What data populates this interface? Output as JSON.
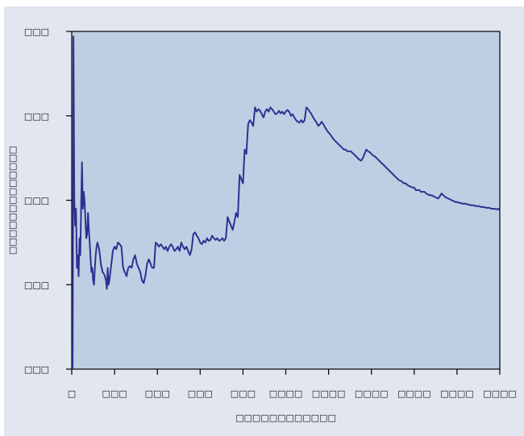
{
  "chart_data": {
    "type": "line",
    "title": "",
    "xlabel": "□□□□□□□□□□□□",
    "ylabel": "□□□□□□□□□□□□□",
    "x_ticks": [
      {
        "value": 0,
        "label": "□"
      },
      {
        "value": 50,
        "label": "□□□"
      },
      {
        "value": 100,
        "label": "□□□"
      },
      {
        "value": 150,
        "label": "□□□"
      },
      {
        "value": 200,
        "label": "□□□"
      },
      {
        "value": 250,
        "label": "□□□□"
      },
      {
        "value": 300,
        "label": "□□□□"
      },
      {
        "value": 350,
        "label": "□□□□"
      },
      {
        "value": 400,
        "label": "□□□□"
      },
      {
        "value": 450,
        "label": "□□□□"
      },
      {
        "value": 500,
        "label": "□□□□"
      }
    ],
    "y_ticks": [
      {
        "value": 0,
        "label": "□□□"
      },
      {
        "value": 1,
        "label": "□□□"
      },
      {
        "value": 2,
        "label": "□□□"
      },
      {
        "value": 3,
        "label": "□□□"
      },
      {
        "value": 4,
        "label": "□□□"
      }
    ],
    "xlim": [
      0,
      500
    ],
    "ylim": [
      0,
      4
    ],
    "grid": false,
    "colors": {
      "line": "#2e3192",
      "plot_bg": "#bfcfe3",
      "figure_bg": "#e1e6f0",
      "axis": "#000000"
    },
    "series": [
      {
        "values": [
          [
            1,
            0.0
          ],
          [
            2,
            3.94
          ],
          [
            3,
            2.0
          ],
          [
            4,
            1.7
          ],
          [
            5,
            1.9
          ],
          [
            6,
            1.2
          ],
          [
            7,
            1.35
          ],
          [
            8,
            1.1
          ],
          [
            9,
            1.55
          ],
          [
            10,
            1.35
          ],
          [
            11,
            1.95
          ],
          [
            12,
            2.45
          ],
          [
            13,
            1.9
          ],
          [
            14,
            2.1
          ],
          [
            15,
            2.0
          ],
          [
            16,
            1.75
          ],
          [
            17,
            1.55
          ],
          [
            18,
            1.6
          ],
          [
            19,
            1.85
          ],
          [
            20,
            1.65
          ],
          [
            21,
            1.5
          ],
          [
            22,
            1.3
          ],
          [
            23,
            1.15
          ],
          [
            24,
            1.2
          ],
          [
            25,
            1.05
          ],
          [
            26,
            1.0
          ],
          [
            27,
            1.2
          ],
          [
            28,
            1.35
          ],
          [
            29,
            1.45
          ],
          [
            30,
            1.5
          ],
          [
            32,
            1.42
          ],
          [
            34,
            1.25
          ],
          [
            36,
            1.15
          ],
          [
            38,
            1.12
          ],
          [
            40,
            1.05
          ],
          [
            41,
            0.95
          ],
          [
            42,
            1.2
          ],
          [
            43,
            1.0
          ],
          [
            44,
            1.05
          ],
          [
            48,
            1.4
          ],
          [
            50,
            1.45
          ],
          [
            52,
            1.42
          ],
          [
            54,
            1.5
          ],
          [
            56,
            1.48
          ],
          [
            58,
            1.45
          ],
          [
            60,
            1.2
          ],
          [
            62,
            1.15
          ],
          [
            64,
            1.1
          ],
          [
            66,
            1.2
          ],
          [
            68,
            1.22
          ],
          [
            70,
            1.2
          ],
          [
            72,
            1.3
          ],
          [
            74,
            1.35
          ],
          [
            76,
            1.25
          ],
          [
            78,
            1.2
          ],
          [
            80,
            1.15
          ],
          [
            82,
            1.05
          ],
          [
            84,
            1.02
          ],
          [
            86,
            1.1
          ],
          [
            88,
            1.25
          ],
          [
            90,
            1.3
          ],
          [
            92,
            1.25
          ],
          [
            94,
            1.2
          ],
          [
            96,
            1.2
          ],
          [
            98,
            1.5
          ],
          [
            100,
            1.48
          ],
          [
            102,
            1.45
          ],
          [
            104,
            1.48
          ],
          [
            106,
            1.45
          ],
          [
            108,
            1.42
          ],
          [
            110,
            1.45
          ],
          [
            112,
            1.4
          ],
          [
            114,
            1.45
          ],
          [
            116,
            1.48
          ],
          [
            118,
            1.45
          ],
          [
            120,
            1.4
          ],
          [
            122,
            1.42
          ],
          [
            124,
            1.45
          ],
          [
            126,
            1.4
          ],
          [
            128,
            1.5
          ],
          [
            130,
            1.45
          ],
          [
            132,
            1.42
          ],
          [
            134,
            1.45
          ],
          [
            136,
            1.4
          ],
          [
            138,
            1.35
          ],
          [
            140,
            1.42
          ],
          [
            142,
            1.6
          ],
          [
            144,
            1.62
          ],
          [
            146,
            1.58
          ],
          [
            148,
            1.55
          ],
          [
            150,
            1.5
          ],
          [
            152,
            1.48
          ],
          [
            154,
            1.52
          ],
          [
            156,
            1.5
          ],
          [
            158,
            1.55
          ],
          [
            160,
            1.52
          ],
          [
            162,
            1.53
          ],
          [
            164,
            1.58
          ],
          [
            166,
            1.55
          ],
          [
            168,
            1.53
          ],
          [
            170,
            1.55
          ],
          [
            172,
            1.52
          ],
          [
            174,
            1.53
          ],
          [
            176,
            1.55
          ],
          [
            178,
            1.52
          ],
          [
            180,
            1.55
          ],
          [
            182,
            1.8
          ],
          [
            184,
            1.75
          ],
          [
            186,
            1.7
          ],
          [
            188,
            1.65
          ],
          [
            190,
            1.75
          ],
          [
            192,
            1.85
          ],
          [
            194,
            1.8
          ],
          [
            196,
            2.3
          ],
          [
            198,
            2.25
          ],
          [
            200,
            2.2
          ],
          [
            202,
            2.6
          ],
          [
            204,
            2.55
          ],
          [
            206,
            2.9
          ],
          [
            208,
            2.95
          ],
          [
            210,
            2.92
          ],
          [
            212,
            2.88
          ],
          [
            214,
            3.1
          ],
          [
            216,
            3.05
          ],
          [
            218,
            3.08
          ],
          [
            220,
            3.06
          ],
          [
            222,
            3.02
          ],
          [
            224,
            2.98
          ],
          [
            226,
            3.05
          ],
          [
            228,
            3.08
          ],
          [
            230,
            3.05
          ],
          [
            232,
            3.1
          ],
          [
            234,
            3.08
          ],
          [
            236,
            3.05
          ],
          [
            238,
            3.02
          ],
          [
            240,
            3.03
          ],
          [
            242,
            3.06
          ],
          [
            244,
            3.03
          ],
          [
            246,
            3.05
          ],
          [
            248,
            3.02
          ],
          [
            250,
            3.05
          ],
          [
            252,
            3.07
          ],
          [
            254,
            3.05
          ],
          [
            256,
            3.0
          ],
          [
            258,
            3.02
          ],
          [
            260,
            2.98
          ],
          [
            262,
            2.95
          ],
          [
            264,
            2.93
          ],
          [
            266,
            2.92
          ],
          [
            268,
            2.95
          ],
          [
            270,
            2.92
          ],
          [
            272,
            2.95
          ],
          [
            274,
            3.1
          ],
          [
            276,
            3.08
          ],
          [
            278,
            3.05
          ],
          [
            280,
            3.02
          ],
          [
            282,
            2.98
          ],
          [
            284,
            2.95
          ],
          [
            286,
            2.92
          ],
          [
            288,
            2.88
          ],
          [
            290,
            2.9
          ],
          [
            292,
            2.93
          ],
          [
            294,
            2.9
          ],
          [
            296,
            2.86
          ],
          [
            298,
            2.83
          ],
          [
            300,
            2.8
          ],
          [
            302,
            2.78
          ],
          [
            304,
            2.75
          ],
          [
            306,
            2.72
          ],
          [
            308,
            2.7
          ],
          [
            310,
            2.68
          ],
          [
            312,
            2.66
          ],
          [
            314,
            2.64
          ],
          [
            316,
            2.62
          ],
          [
            318,
            2.6
          ],
          [
            320,
            2.6
          ],
          [
            322,
            2.58
          ],
          [
            324,
            2.58
          ],
          [
            326,
            2.58
          ],
          [
            328,
            2.56
          ],
          [
            330,
            2.54
          ],
          [
            332,
            2.52
          ],
          [
            334,
            2.5
          ],
          [
            336,
            2.48
          ],
          [
            338,
            2.47
          ],
          [
            340,
            2.5
          ],
          [
            342,
            2.55
          ],
          [
            344,
            2.6
          ],
          [
            346,
            2.58
          ],
          [
            348,
            2.57
          ],
          [
            350,
            2.55
          ],
          [
            352,
            2.53
          ],
          [
            354,
            2.52
          ],
          [
            356,
            2.5
          ],
          [
            358,
            2.48
          ],
          [
            360,
            2.46
          ],
          [
            362,
            2.44
          ],
          [
            364,
            2.42
          ],
          [
            366,
            2.4
          ],
          [
            368,
            2.38
          ],
          [
            370,
            2.36
          ],
          [
            372,
            2.34
          ],
          [
            374,
            2.32
          ],
          [
            376,
            2.3
          ],
          [
            378,
            2.28
          ],
          [
            380,
            2.26
          ],
          [
            382,
            2.24
          ],
          [
            384,
            2.23
          ],
          [
            386,
            2.22
          ],
          [
            388,
            2.2
          ],
          [
            390,
            2.2
          ],
          [
            392,
            2.18
          ],
          [
            394,
            2.17
          ],
          [
            396,
            2.16
          ],
          [
            398,
            2.15
          ],
          [
            400,
            2.15
          ],
          [
            402,
            2.12
          ],
          [
            404,
            2.12
          ],
          [
            406,
            2.12
          ],
          [
            408,
            2.1
          ],
          [
            410,
            2.1
          ],
          [
            412,
            2.1
          ],
          [
            414,
            2.08
          ],
          [
            416,
            2.07
          ],
          [
            418,
            2.06
          ],
          [
            420,
            2.06
          ],
          [
            422,
            2.05
          ],
          [
            424,
            2.04
          ],
          [
            426,
            2.03
          ],
          [
            428,
            2.02
          ],
          [
            430,
            2.05
          ],
          [
            432,
            2.08
          ],
          [
            434,
            2.06
          ],
          [
            436,
            2.04
          ],
          [
            438,
            2.03
          ],
          [
            440,
            2.02
          ],
          [
            442,
            2.01
          ],
          [
            444,
            2.0
          ],
          [
            446,
            1.99
          ],
          [
            448,
            1.98
          ],
          [
            450,
            1.98
          ],
          [
            452,
            1.97
          ],
          [
            454,
            1.97
          ],
          [
            456,
            1.96
          ],
          [
            458,
            1.96
          ],
          [
            460,
            1.96
          ],
          [
            462,
            1.95
          ],
          [
            464,
            1.95
          ],
          [
            466,
            1.94
          ],
          [
            468,
            1.94
          ],
          [
            470,
            1.94
          ],
          [
            472,
            1.93
          ],
          [
            474,
            1.93
          ],
          [
            476,
            1.93
          ],
          [
            478,
            1.92
          ],
          [
            480,
            1.92
          ],
          [
            482,
            1.92
          ],
          [
            484,
            1.91
          ],
          [
            486,
            1.91
          ],
          [
            488,
            1.91
          ],
          [
            490,
            1.9
          ],
          [
            492,
            1.9
          ],
          [
            494,
            1.9
          ],
          [
            496,
            1.89
          ],
          [
            498,
            1.9
          ],
          [
            500,
            1.88
          ]
        ]
      }
    ]
  }
}
